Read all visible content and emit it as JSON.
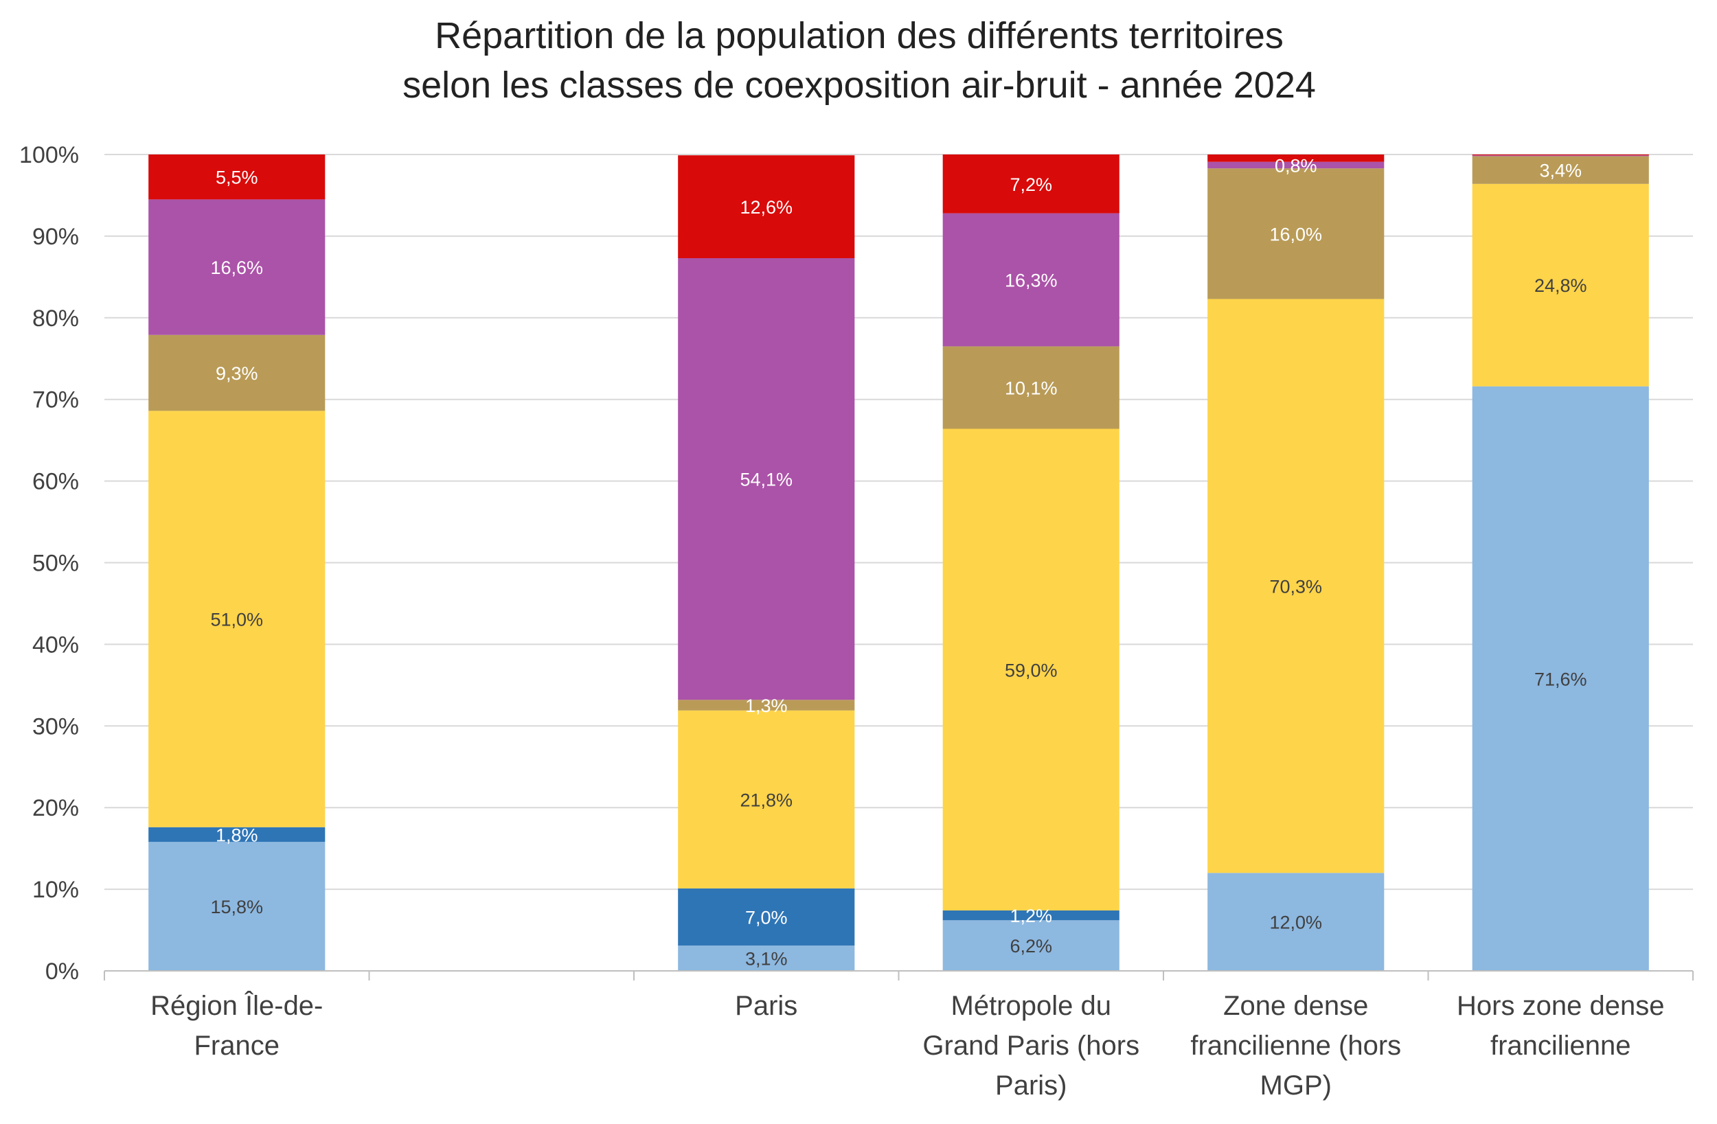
{
  "chart_data": {
    "type": "bar",
    "stacked": true,
    "title": [
      "Répartition de la population des différents territoires",
      "selon les classes de coexposition air-bruit - année 2024"
    ],
    "xlabel": "",
    "ylabel": "",
    "ylim": [
      0,
      100
    ],
    "yticks": [
      "0%",
      "10%",
      "20%",
      "30%",
      "40%",
      "50%",
      "60%",
      "70%",
      "80%",
      "90%",
      "100%"
    ],
    "grid": true,
    "legend": "none",
    "categories": [
      [
        "Région Île-de-",
        "France"
      ],
      [
        ""
      ],
      [
        "Paris"
      ],
      [
        "Métropole du",
        "Grand Paris (hors",
        "Paris)"
      ],
      [
        "Zone dense",
        "francilienne (hors",
        "MGP)"
      ],
      [
        "Hors zone dense",
        "francilienne"
      ]
    ],
    "series": [
      {
        "color": "#8db8e0",
        "label_color": "#404040",
        "values": [
          15.8,
          null,
          3.1,
          6.2,
          12.0,
          71.6
        ],
        "labels": [
          "15,8%",
          "",
          "3,1%",
          "6,2%",
          "12,0%",
          "71,6%"
        ]
      },
      {
        "color": "#2e75b6",
        "label_color": "#ffffff",
        "values": [
          1.8,
          null,
          7.0,
          1.2,
          0.0,
          0.0
        ],
        "labels": [
          "1,8%",
          "",
          "7,0%",
          "1,2%",
          "",
          ""
        ]
      },
      {
        "color": "#fed44a",
        "label_color": "#404040",
        "values": [
          51.0,
          null,
          21.8,
          59.0,
          70.3,
          24.8
        ],
        "labels": [
          "51,0%",
          "",
          "21,8%",
          "59,0%",
          "70,3%",
          "24,8%"
        ]
      },
      {
        "color": "#b99b57",
        "label_color": "#ffffff",
        "values": [
          9.3,
          null,
          1.3,
          10.1,
          16.0,
          3.4
        ],
        "labels": [
          "9,3%",
          "",
          "1,3%",
          "10,1%",
          "16,0%",
          "3,4%"
        ]
      },
      {
        "color": "#ab53a8",
        "label_color": "#ffffff",
        "values": [
          16.6,
          null,
          54.1,
          16.3,
          0.8,
          0.1
        ],
        "labels": [
          "16,6%",
          "",
          "54,1%",
          "16,3%",
          "0,8%",
          ""
        ]
      },
      {
        "color": "#d90a0a",
        "label_color": "#ffffff",
        "values": [
          5.5,
          null,
          12.6,
          7.2,
          0.9,
          0.1
        ],
        "labels": [
          "5,5%",
          "",
          "12,6%",
          "7,2%",
          "",
          ""
        ]
      }
    ]
  }
}
